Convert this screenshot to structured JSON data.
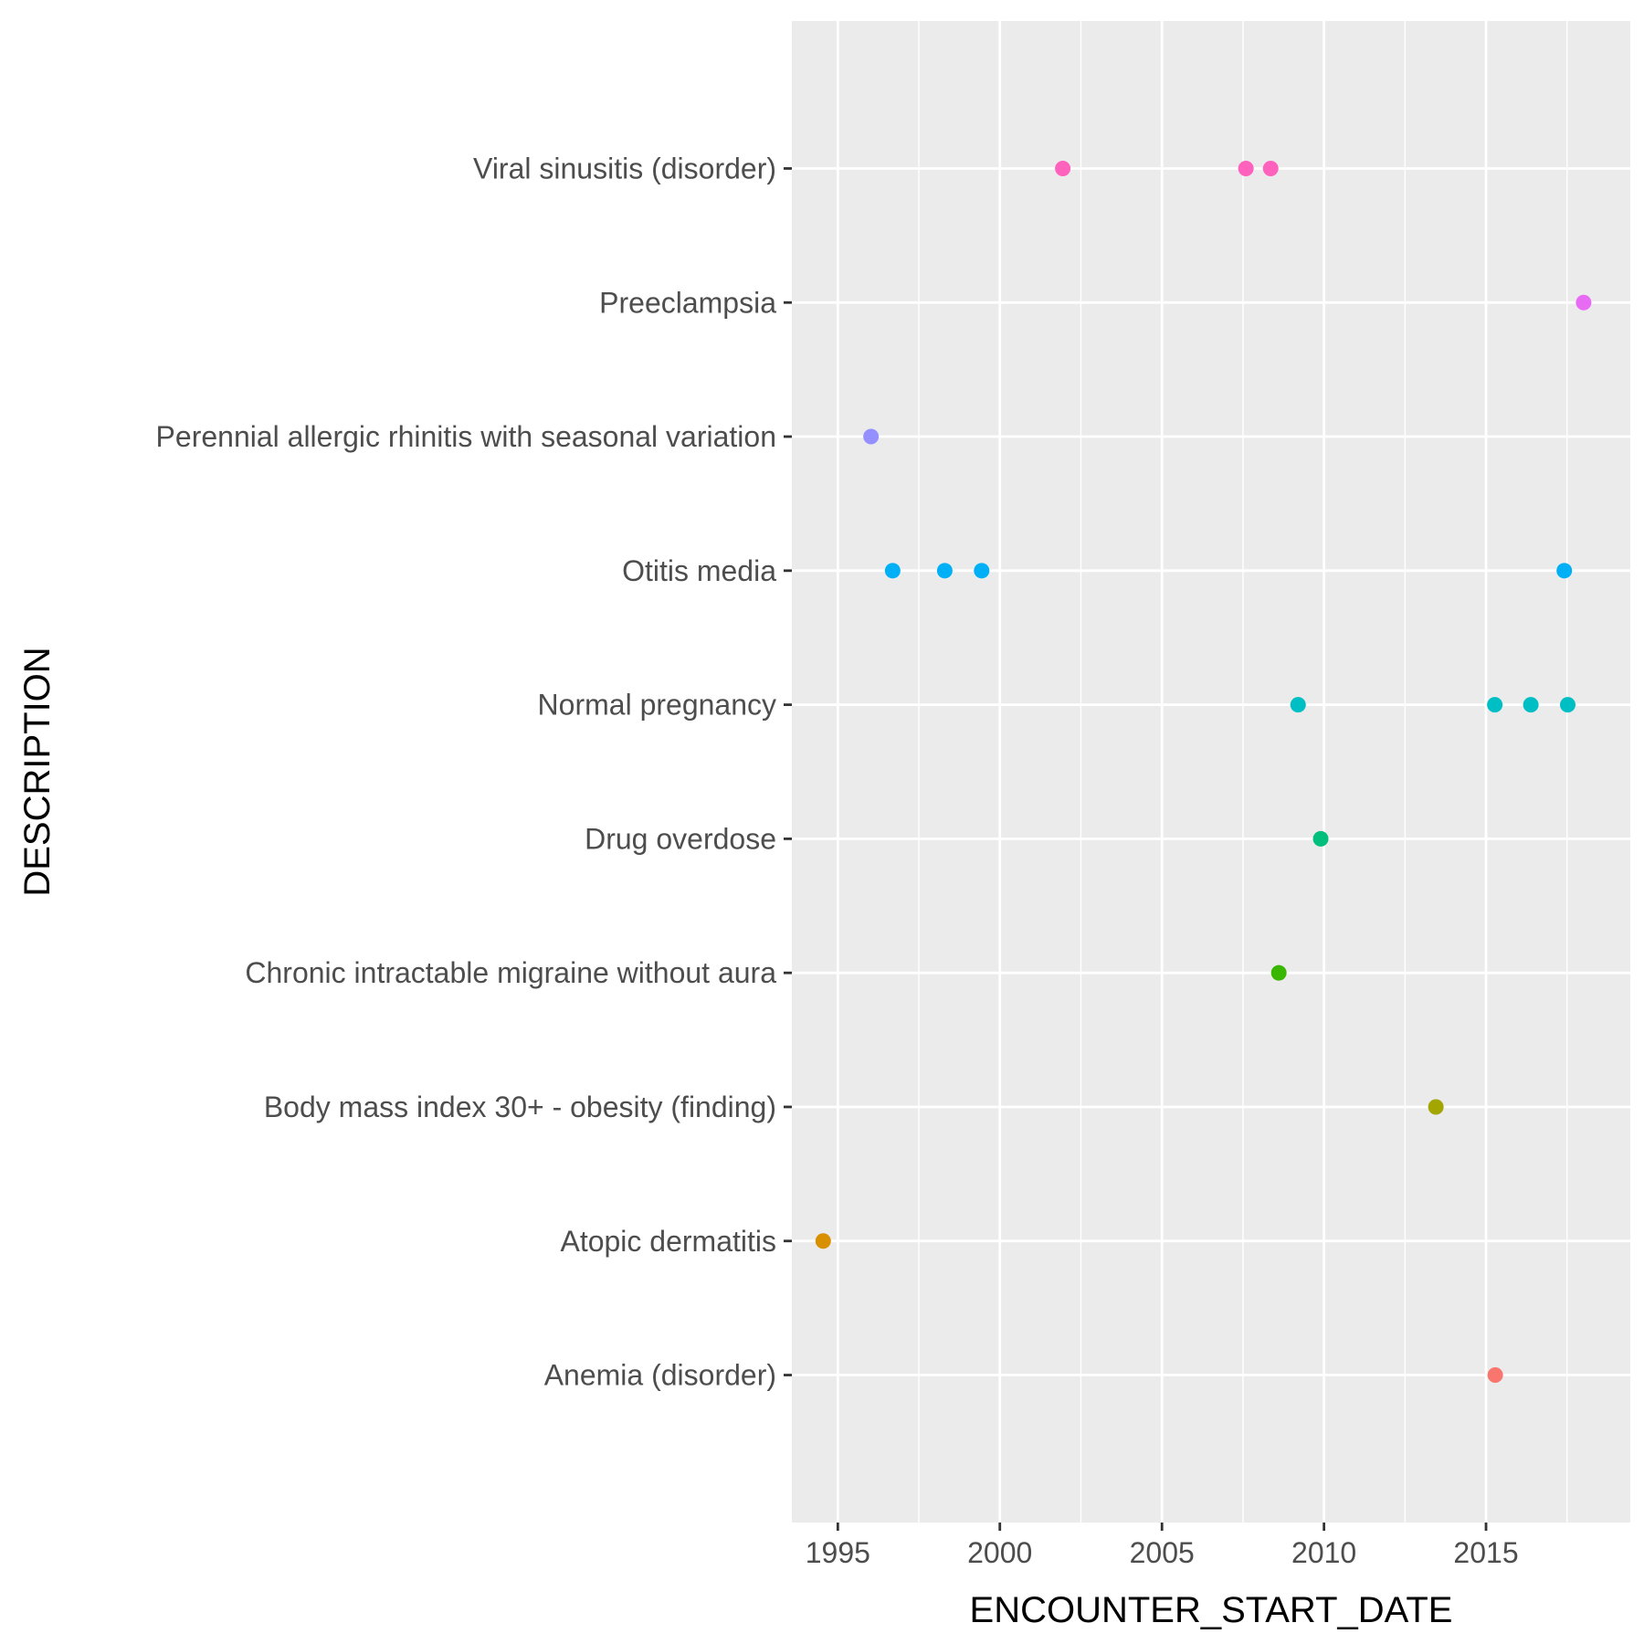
{
  "chart_data": {
    "type": "scatter",
    "title": "",
    "xlabel": "ENCOUNTER_START_DATE",
    "ylabel": "DESCRIPTION",
    "x_scale": "date",
    "xlim": [
      "1993-08-01",
      "2019-06-15"
    ],
    "x_ticks": [
      "1995",
      "2000",
      "2005",
      "2010",
      "2015"
    ],
    "grid": true,
    "legend": "none",
    "categories": [
      "Anemia (disorder)",
      "Atopic dermatitis",
      "Body mass index 30+ - obesity (finding)",
      "Chronic intractable migraine without aura",
      "Drug overdose",
      "Normal pregnancy",
      "Otitis media",
      "Perennial allergic rhinitis with seasonal variation",
      "Preeclampsia",
      "Viral sinusitis (disorder)"
    ],
    "series": [
      {
        "category": "Anemia (disorder)",
        "color": "#F8766D",
        "x": [
          "2015-04-15"
        ]
      },
      {
        "category": "Atopic dermatitis",
        "color": "#D89000",
        "x": [
          "1994-07-20"
        ]
      },
      {
        "category": "Body mass index 30+ - obesity (finding)",
        "color": "#A3A500",
        "x": [
          "2013-06-15"
        ]
      },
      {
        "category": "Chronic intractable migraine without aura",
        "color": "#39B600",
        "x": [
          "2008-08-10"
        ]
      },
      {
        "category": "Drug overdose",
        "color": "#00BF7D",
        "x": [
          "2009-11-25"
        ]
      },
      {
        "category": "Normal pregnancy",
        "color": "#00BFC4",
        "x": [
          "2009-03-15",
          "2015-04-10",
          "2016-05-20",
          "2017-07-10"
        ]
      },
      {
        "category": "Otitis media",
        "color": "#00B0F6",
        "x": [
          "1996-09-10",
          "1998-04-20",
          "1999-06-10",
          "2017-06-01"
        ]
      },
      {
        "category": "Perennial allergic rhinitis with seasonal variation",
        "color": "#9590FF",
        "x": [
          "1996-01-10"
        ]
      },
      {
        "category": "Preeclampsia",
        "color": "#E76BF3",
        "x": [
          "2018-01-05"
        ]
      },
      {
        "category": "Viral sinusitis (disorder)",
        "color": "#FF62BC",
        "x": [
          "2001-12-10",
          "2007-08-05",
          "2008-05-10"
        ]
      }
    ]
  }
}
